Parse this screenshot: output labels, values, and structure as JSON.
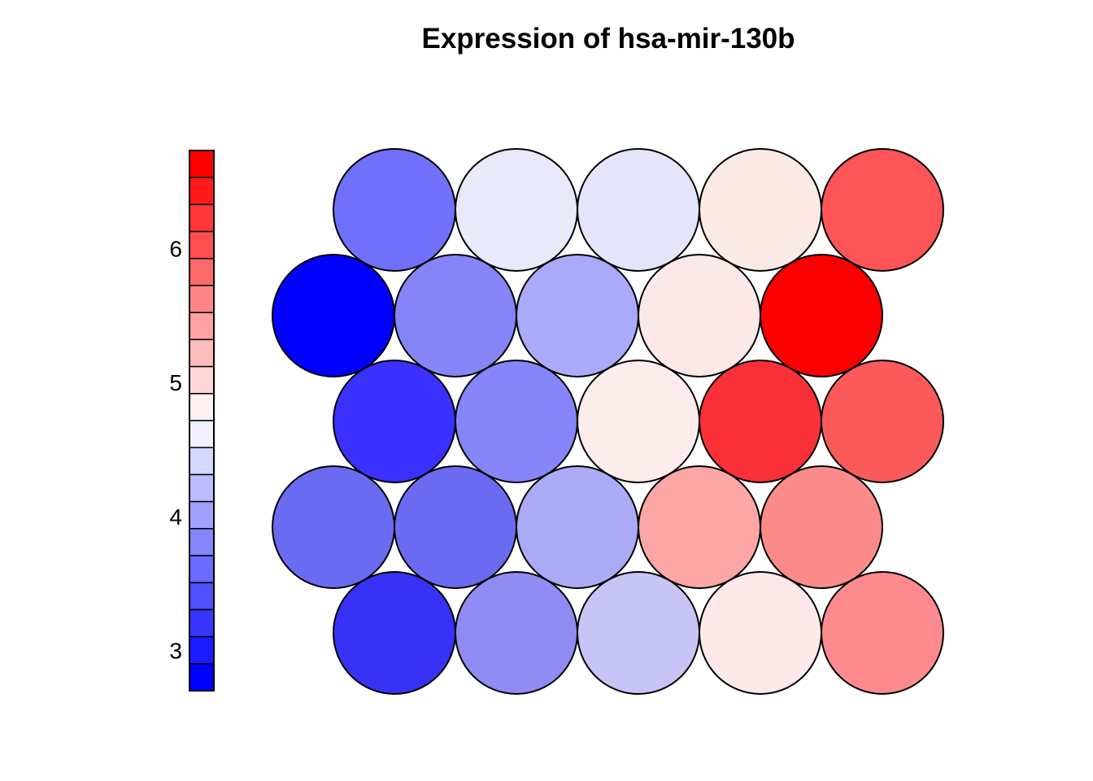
{
  "title": "Expression of hsa-mir-130b",
  "chart_data": {
    "type": "heatmap",
    "subtype": "som-property-plot",
    "title": "Expression of hsa-mir-130b",
    "layout_hint": "hexagonal self-organizing-map grid: 5 rows x 5 columns of tangent circles; rows 1,3,5 offset right, rows 2,4 offset left; colorbar on left, no axis lines, white background",
    "grid": {
      "rows": 5,
      "cols": 5,
      "topology": "hexagonal"
    },
    "colorbar": {
      "orientation": "vertical",
      "position": "left",
      "range_min": 2.7,
      "range_max": 6.73,
      "n_segments": 20,
      "tick_values": [
        6,
        5,
        4,
        3
      ],
      "tick_labels": [
        "6",
        "5",
        "4",
        "3"
      ],
      "colors_top_to_bottom": [
        "#FF0000",
        "#FF1B1B",
        "#FF3636",
        "#FF5050",
        "#FF6B6B",
        "#FF8686",
        "#FFA1A1",
        "#FFBCBC",
        "#FFD6D6",
        "#FFF1F1",
        "#F1F1FF",
        "#D6D6FF",
        "#BCBCFF",
        "#A1A1FF",
        "#8686FF",
        "#6B6BFF",
        "#5050FF",
        "#3636FF",
        "#1B1BFF",
        "#0000FF"
      ]
    },
    "cells": [
      {
        "row": 1,
        "col": 1,
        "value": 3.6,
        "color": "#7070FA"
      },
      {
        "row": 1,
        "col": 2,
        "value": 4.6,
        "color": "#E9E9FC"
      },
      {
        "row": 1,
        "col": 3,
        "value": 4.6,
        "color": "#E4E4FA"
      },
      {
        "row": 1,
        "col": 4,
        "value": 4.8,
        "color": "#FCEAE6"
      },
      {
        "row": 1,
        "col": 5,
        "value": 6.0,
        "color": "#FC5457"
      },
      {
        "row": 2,
        "col": 1,
        "value": 2.8,
        "color": "#0000FE"
      },
      {
        "row": 2,
        "col": 2,
        "value": 3.8,
        "color": "#8585F8"
      },
      {
        "row": 2,
        "col": 3,
        "value": 4.1,
        "color": "#AAAAFA"
      },
      {
        "row": 2,
        "col": 4,
        "value": 4.8,
        "color": "#FBE8E8"
      },
      {
        "row": 2,
        "col": 5,
        "value": 6.6,
        "color": "#FB0000"
      },
      {
        "row": 3,
        "col": 1,
        "value": 3.2,
        "color": "#3A31FE"
      },
      {
        "row": 3,
        "col": 2,
        "value": 3.8,
        "color": "#8686FA"
      },
      {
        "row": 3,
        "col": 3,
        "value": 4.8,
        "color": "#FDECEC"
      },
      {
        "row": 3,
        "col": 4,
        "value": 6.4,
        "color": "#F93038"
      },
      {
        "row": 3,
        "col": 5,
        "value": 6.0,
        "color": "#FB5A5A"
      },
      {
        "row": 4,
        "col": 1,
        "value": 3.6,
        "color": "#6B6BF2"
      },
      {
        "row": 4,
        "col": 2,
        "value": 3.6,
        "color": "#6B6BF2"
      },
      {
        "row": 4,
        "col": 3,
        "value": 4.2,
        "color": "#ABABF5"
      },
      {
        "row": 4,
        "col": 4,
        "value": 5.4,
        "color": "#FCA6A6"
      },
      {
        "row": 4,
        "col": 5,
        "value": 5.6,
        "color": "#FB8B8B"
      },
      {
        "row": 5,
        "col": 1,
        "value": 3.2,
        "color": "#3832F6"
      },
      {
        "row": 5,
        "col": 2,
        "value": 3.8,
        "color": "#8F8BF2"
      },
      {
        "row": 5,
        "col": 3,
        "value": 4.4,
        "color": "#C7C5F5"
      },
      {
        "row": 5,
        "col": 4,
        "value": 4.8,
        "color": "#FDE9E9"
      },
      {
        "row": 5,
        "col": 5,
        "value": 5.6,
        "color": "#FC8A8F"
      }
    ],
    "stroke_color": "#000000",
    "background_color": "#FFFFFF"
  }
}
